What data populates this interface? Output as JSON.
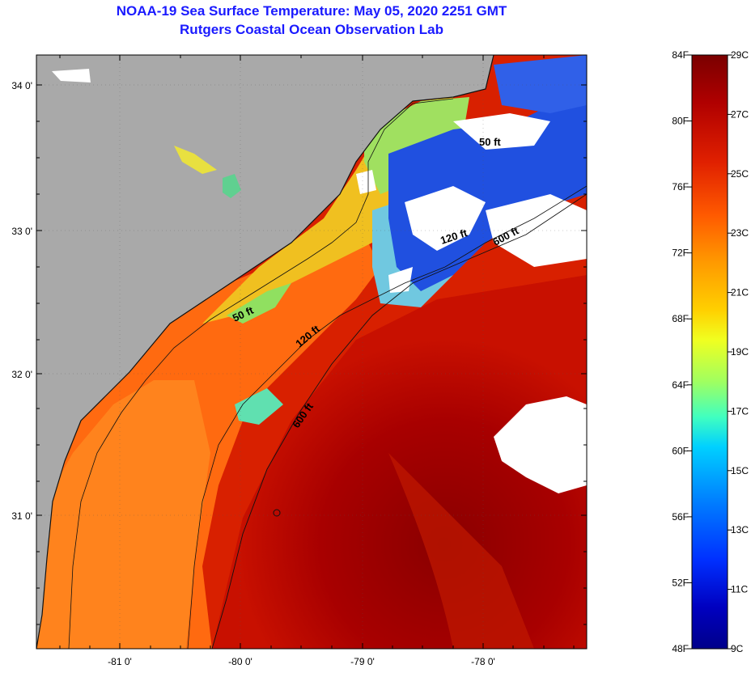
{
  "title_line1": "NOAA-19 Sea Surface Temperature:  May 05, 2020 2251 GMT",
  "title_line2": "Rutgers Coastal Ocean Observation Lab",
  "latitude_labels": [
    "34 0'",
    "33 0'",
    "32 0'",
    "31 0'"
  ],
  "longitude_labels": [
    "-81 0'",
    "-80 0'",
    "-79 0'",
    "-78 0'"
  ],
  "contours": {
    "north_50": "50 ft",
    "north_120": "120 ft",
    "north_600": "600 ft",
    "south_50": "50 ft",
    "south_120": "120 ft",
    "south_600": "600 ft"
  },
  "colorbar": {
    "fahrenheit_labels": [
      "84F",
      "80F",
      "76F",
      "72F",
      "68F",
      "64F",
      "60F",
      "56F",
      "52F",
      "48F"
    ],
    "celsius_labels": [
      "29C",
      "27C",
      "25C",
      "23C",
      "21C",
      "19C",
      "17C",
      "15C",
      "13C",
      "11C",
      "9C"
    ],
    "colors": [
      "#7a0000",
      "#b00000",
      "#e02000",
      "#ff5a00",
      "#ff9a00",
      "#ffd000",
      "#f0ff20",
      "#a0ff60",
      "#40ffc0",
      "#00d0ff",
      "#0080ff",
      "#0030ff",
      "#0000c0",
      "#00008a"
    ]
  },
  "colors": {
    "land": "#a9a9a9",
    "cloud": "#ffffff",
    "title": "#1a1aff"
  }
}
